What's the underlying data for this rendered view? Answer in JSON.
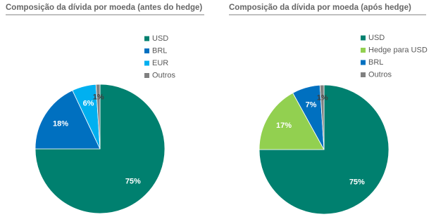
{
  "chart_data": [
    {
      "type": "pie",
      "title": "Composição da dívida por moeda (antes do hedge)",
      "categories": [
        "USD",
        "BRL",
        "EUR",
        "Outros"
      ],
      "values": [
        75,
        18,
        6,
        1
      ],
      "value_labels": [
        "75%",
        "18%",
        "6%",
        "1%"
      ],
      "colors": [
        "#00806f",
        "#0070c0",
        "#00b0f0",
        "#808080"
      ]
    },
    {
      "type": "pie",
      "title": "Composição da dívida por moeda (após hedge)",
      "categories": [
        "USD",
        "Hedge para USD",
        "BRL",
        "Outros"
      ],
      "values": [
        75,
        17,
        7,
        1
      ],
      "value_labels": [
        "75%",
        "17%",
        "7%",
        "1%"
      ],
      "colors": [
        "#00806f",
        "#92d050",
        "#0070c0",
        "#808080"
      ]
    }
  ]
}
